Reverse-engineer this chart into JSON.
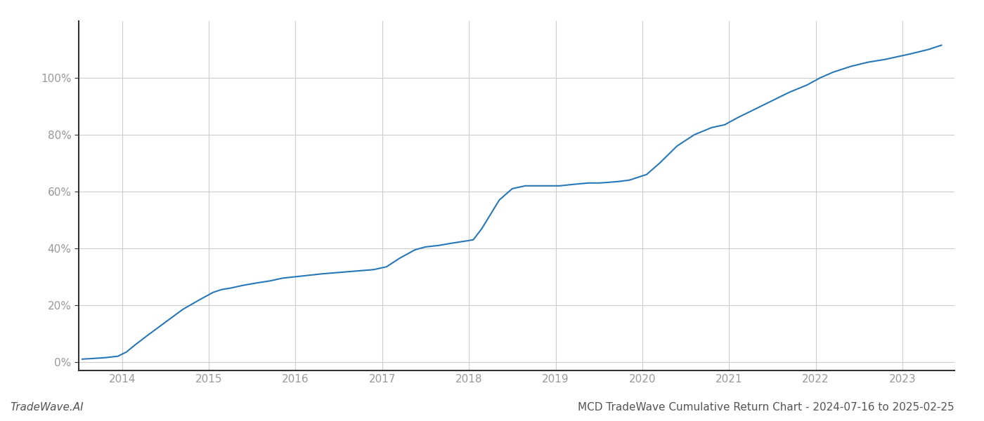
{
  "title": "MCD TradeWave Cumulative Return Chart - 2024-07-16 to 2025-02-25",
  "watermark": "TradeWave.AI",
  "line_color": "#2878b8",
  "line_width": 1.5,
  "background_color": "#ffffff",
  "grid_color": "#cccccc",
  "x_values": [
    2013.54,
    2013.65,
    2013.8,
    2013.95,
    2014.05,
    2014.15,
    2014.3,
    2014.5,
    2014.7,
    2014.9,
    2015.05,
    2015.15,
    2015.25,
    2015.4,
    2015.55,
    2015.7,
    2015.85,
    2016.0,
    2016.15,
    2016.3,
    2016.5,
    2016.7,
    2016.9,
    2017.05,
    2017.2,
    2017.38,
    2017.5,
    2017.65,
    2017.8,
    2017.95,
    2018.05,
    2018.15,
    2018.25,
    2018.35,
    2018.5,
    2018.65,
    2018.8,
    2018.95,
    2019.05,
    2019.2,
    2019.38,
    2019.5,
    2019.6,
    2019.72,
    2019.85,
    2019.95,
    2020.05,
    2020.2,
    2020.4,
    2020.6,
    2020.8,
    2020.95,
    2021.1,
    2021.3,
    2021.5,
    2021.7,
    2021.9,
    2022.05,
    2022.2,
    2022.4,
    2022.6,
    2022.8,
    2022.95,
    2023.1,
    2023.3,
    2023.45
  ],
  "y_values": [
    1.0,
    1.2,
    1.5,
    2.0,
    3.5,
    6.0,
    9.5,
    14.0,
    18.5,
    22.0,
    24.5,
    25.5,
    26.0,
    27.0,
    27.8,
    28.5,
    29.5,
    30.0,
    30.5,
    31.0,
    31.5,
    32.0,
    32.5,
    33.5,
    36.5,
    39.5,
    40.5,
    41.0,
    41.8,
    42.5,
    43.0,
    47.0,
    52.0,
    57.0,
    61.0,
    62.0,
    62.0,
    62.0,
    62.0,
    62.5,
    63.0,
    63.0,
    63.2,
    63.5,
    64.0,
    65.0,
    66.0,
    70.0,
    76.0,
    80.0,
    82.5,
    83.5,
    86.0,
    89.0,
    92.0,
    95.0,
    97.5,
    100.0,
    102.0,
    104.0,
    105.5,
    106.5,
    107.5,
    108.5,
    110.0,
    111.5
  ],
  "xticks": [
    2014,
    2015,
    2016,
    2017,
    2018,
    2019,
    2020,
    2021,
    2022,
    2023
  ],
  "yticks": [
    0,
    20,
    40,
    60,
    80,
    100
  ],
  "ylim": [
    -3,
    120
  ],
  "xlim": [
    2013.5,
    2023.6
  ],
  "title_fontsize": 11,
  "tick_fontsize": 11,
  "watermark_fontsize": 11
}
